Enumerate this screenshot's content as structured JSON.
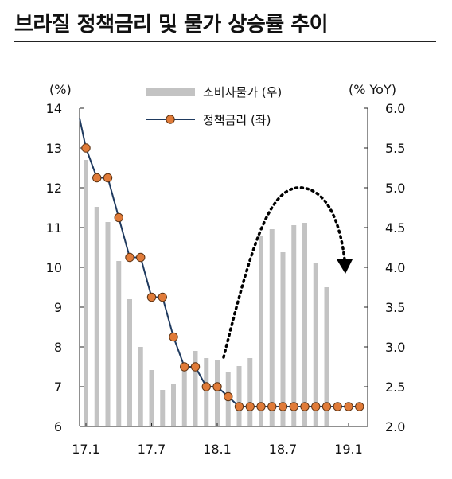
{
  "title": "브라질 정책금리 및 물가 상승률 추이",
  "colors": {
    "bar": "#c3c3c3",
    "line": "#1f3a5f",
    "marker_fill": "#e07b39",
    "marker_stroke": "#5a3010",
    "arrow": "#000000"
  },
  "chart_data": {
    "type": "bar+line",
    "left_unit": "(%)",
    "right_unit": "(% YoY)",
    "left_axis": {
      "range": [
        6,
        14
      ],
      "ticks": [
        "6",
        "7",
        "8",
        "9",
        "10",
        "11",
        "12",
        "13",
        "14"
      ]
    },
    "right_axis": {
      "range": [
        2.0,
        6.0
      ],
      "ticks": [
        "2.0",
        "2.5",
        "3.0",
        "3.5",
        "4.0",
        "4.5",
        "5.0",
        "5.5",
        "6.0"
      ]
    },
    "x_tick_labels": [
      "17.1",
      "17.7",
      "18.1",
      "18.7",
      "19.1"
    ],
    "legend": [
      {
        "name": "소비자물가 (우)",
        "kind": "bar"
      },
      {
        "name": "정책금리 (좌)",
        "kind": "line"
      }
    ],
    "cpi_bars": {
      "name": "소비자물가 (우)",
      "axis": "right",
      "values": [
        5.35,
        4.76,
        4.57,
        4.08,
        3.6,
        3.0,
        2.71,
        2.46,
        2.54,
        2.7,
        2.95,
        2.86,
        2.84,
        2.68,
        2.76,
        2.86,
        4.39,
        4.48,
        4.19,
        4.53,
        4.56,
        4.05,
        3.75
      ]
    },
    "policy_rate": {
      "name": "정책금리 (좌)",
      "axis": "left",
      "values": [
        13.75,
        13.0,
        12.25,
        12.25,
        11.25,
        10.25,
        10.25,
        9.25,
        9.25,
        8.25,
        7.5,
        7.5,
        7.0,
        7.0,
        6.75,
        6.5,
        6.5,
        6.5,
        6.5,
        6.5,
        6.5,
        6.5,
        6.5,
        6.5,
        6.5,
        6.5,
        6.5
      ],
      "first_point_unmarked": true
    },
    "annotation": "dotted-curved-arrow-upturn-in-inflation"
  }
}
